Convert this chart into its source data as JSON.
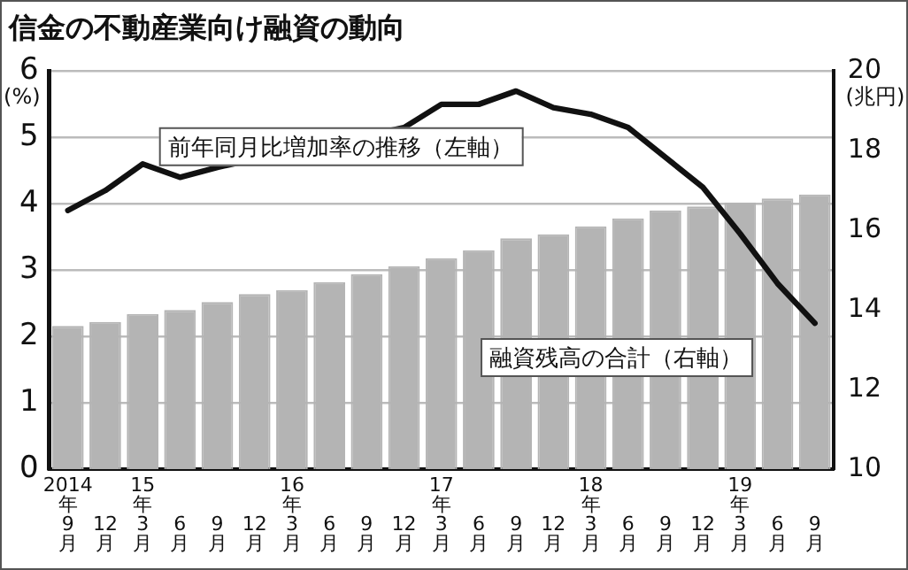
{
  "chart_data": {
    "type": "bar",
    "title": "信金の不動産業向け融資の動向",
    "categories": [
      "2014年9月",
      "12月",
      "15年3月",
      "6月",
      "9月",
      "12月",
      "16年3月",
      "6月",
      "9月",
      "12月",
      "17年3月",
      "6月",
      "9月",
      "12月",
      "18年3月",
      "6月",
      "9月",
      "12月",
      "19年3月",
      "6月",
      "9月"
    ],
    "series": [
      {
        "name": "融資残高の合計（右軸）",
        "axis": "y2",
        "color": "#b4b4b4",
        "values": [
          13.6,
          13.7,
          13.9,
          14.0,
          14.2,
          14.4,
          14.5,
          14.7,
          14.9,
          15.1,
          15.3,
          15.5,
          15.8,
          15.9,
          16.1,
          16.3,
          16.5,
          16.6,
          16.7,
          16.8,
          16.9
        ]
      },
      {
        "name": "前年同月比増加率の推移（左軸）",
        "type": "line",
        "color": "#111111",
        "values": [
          3.9,
          4.2,
          4.6,
          4.4,
          4.55,
          null,
          null,
          null,
          null,
          5.15,
          5.5,
          5.5,
          5.7,
          5.45,
          5.35,
          5.15,
          4.7,
          4.25,
          3.55,
          2.8,
          2.2
        ]
      }
    ],
    "ylabel": "(%)",
    "y2label": "(兆円)",
    "ylim": [
      0,
      6
    ],
    "yticks": [
      0,
      1,
      2,
      3,
      4,
      5,
      6
    ],
    "y2lim": [
      10,
      20
    ],
    "y2ticks": [
      10,
      12,
      14,
      16,
      18,
      20
    ],
    "grid": "y",
    "marker": "none",
    "line_style": "solid",
    "legend": false
  }
}
